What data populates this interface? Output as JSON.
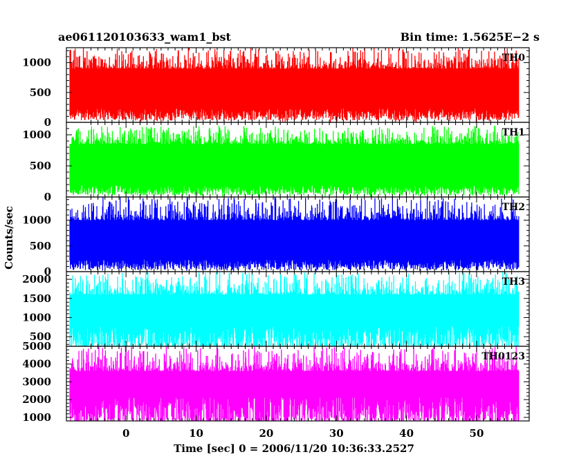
{
  "header": {
    "left_title": "ae061120103633_wam1_bst",
    "right_title": "Bin time: 1.5625E−2 s"
  },
  "chart_data": {
    "type": "line",
    "xlabel": "Time [sec] 0 = 2006/11/20 10:36:33.2527",
    "ylabel": "Counts/sec",
    "xlim": [
      -8.5,
      57.5
    ],
    "x_ticks": [
      0,
      10,
      20,
      30,
      40,
      50
    ],
    "data_x_range": [
      -8.0,
      56.0
    ],
    "bin_time": 0.015625,
    "grid": false,
    "panels": [
      {
        "name": "TH0",
        "color": "#ff0000",
        "ylim": [
          0,
          1250
        ],
        "yticks": [
          0,
          500,
          1000
        ],
        "baseline_level": 550,
        "typical_low": 150,
        "typical_high": 900,
        "peak_max": 1250
      },
      {
        "name": "TH1",
        "color": "#00ff00",
        "ylim": [
          0,
          1200
        ],
        "yticks": [
          0,
          500,
          1000
        ],
        "baseline_level": 500,
        "typical_low": 120,
        "typical_high": 850,
        "peak_max": 1150
      },
      {
        "name": "TH2",
        "color": "#0000ff",
        "ylim": [
          0,
          1450
        ],
        "yticks": [
          0,
          500,
          1000
        ],
        "baseline_level": 600,
        "typical_low": 150,
        "typical_high": 1000,
        "peak_max": 1450
      },
      {
        "name": "TH3",
        "color": "#00ffff",
        "ylim": [
          250,
          2200
        ],
        "yticks": [
          500,
          1000,
          1500,
          2000
        ],
        "baseline_level": 1200,
        "typical_low": 500,
        "typical_high": 1600,
        "peak_max": 2200
      },
      {
        "name": "TH0123",
        "color": "#ff00ff",
        "ylim": [
          800,
          5000
        ],
        "yticks": [
          1000,
          2000,
          3000,
          4000,
          5000
        ],
        "baseline_level": 2600,
        "typical_low": 1500,
        "typical_high": 3600,
        "peak_max": 5000
      }
    ]
  }
}
